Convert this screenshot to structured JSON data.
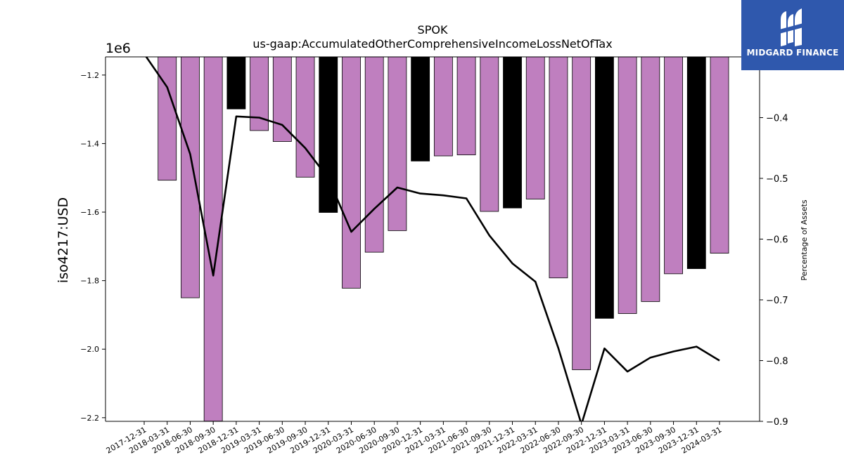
{
  "chart_data": {
    "type": "bar",
    "title": "SPOK",
    "subtitle": "us-gaap:AccumulatedOtherComprehensiveIncomeLossNetOfTax",
    "ylabel": "iso4217:USD",
    "y_offset_label": "1e6",
    "y2label": "Percentage of Assets",
    "ylim": [
      -2.2106,
      -1.147
    ],
    "y2lim": [
      -0.9,
      -0.3
    ],
    "yticks": [
      -1.2,
      -1.4,
      -1.6,
      -1.8,
      -2.0,
      -2.2
    ],
    "y2ticks": [
      -0.4,
      -0.5,
      -0.6,
      -0.7,
      -0.8,
      -0.9
    ],
    "categories": [
      "2017-12-31",
      "2018-03-31",
      "2018-06-30",
      "2018-09-30",
      "2018-12-31",
      "2019-03-31",
      "2019-06-30",
      "2019-09-30",
      "2019-12-31",
      "2020-03-31",
      "2020-06-30",
      "2020-09-30",
      "2020-12-31",
      "2021-03-31",
      "2021-06-30",
      "2021-09-30",
      "2021-12-31",
      "2022-03-31",
      "2022-06-30",
      "2022-09-30",
      "2022-12-31",
      "2023-03-31",
      "2023-06-30",
      "2023-09-30",
      "2023-12-31",
      "2024-03-31"
    ],
    "series": [
      {
        "kind": "bar",
        "axis": "left",
        "values": [
          null,
          -1.507,
          -1.85,
          -2.21,
          -1.299,
          -1.362,
          -1.394,
          -1.498,
          -1.601,
          -1.822,
          -1.717,
          -1.654,
          -1.451,
          -1.436,
          -1.433,
          -1.598,
          -1.588,
          -1.562,
          -1.792,
          -2.06,
          -1.91,
          -1.896,
          -1.861,
          -1.78,
          -1.765,
          -1.72
        ],
        "colors": [
          "#bf7fbf",
          "#bf7fbf",
          "#bf7fbf",
          "#bf7fbf",
          "#000000",
          "#bf7fbf",
          "#bf7fbf",
          "#bf7fbf",
          "#000000",
          "#bf7fbf",
          "#bf7fbf",
          "#bf7fbf",
          "#000000",
          "#bf7fbf",
          "#bf7fbf",
          "#bf7fbf",
          "#000000",
          "#bf7fbf",
          "#bf7fbf",
          "#bf7fbf",
          "#000000",
          "#bf7fbf",
          "#bf7fbf",
          "#bf7fbf",
          "#000000",
          "#bf7fbf"
        ]
      },
      {
        "kind": "line",
        "axis": "right",
        "color": "#000000",
        "values": [
          -0.295,
          -0.35,
          -0.46,
          -0.66,
          -0.398,
          -0.4,
          -0.412,
          -0.45,
          -0.5,
          -0.588,
          -0.55,
          -0.515,
          -0.525,
          -0.528,
          -0.533,
          -0.594,
          -0.64,
          -0.67,
          -0.78,
          -0.905,
          -0.78,
          -0.818,
          -0.795,
          -0.785,
          -0.777,
          -0.8
        ]
      }
    ],
    "grid": false,
    "legend": "none"
  },
  "logo": {
    "text": "MIDGARD FINANCE",
    "bg": "#2f58ad",
    "icon": "midgard-logo-icon"
  }
}
